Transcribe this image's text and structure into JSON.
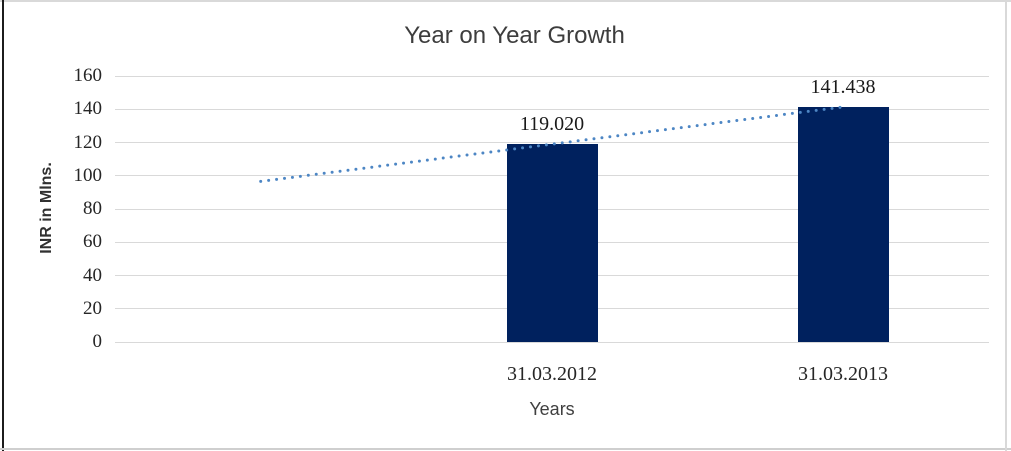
{
  "chart_data": {
    "type": "bar",
    "title": "Year on Year Growth",
    "xlabel": "Years",
    "ylabel": "INR in Mlns.",
    "categories": [
      "",
      "31.03.2012",
      "31.03.2013"
    ],
    "values": [
      null,
      119.02,
      141.438
    ],
    "bar_labels": [
      "",
      "119.020",
      "141.438"
    ],
    "y_ticks": [
      0,
      20,
      40,
      60,
      80,
      100,
      120,
      140,
      160
    ],
    "ylim": [
      0,
      160
    ],
    "grid": true,
    "legend": "none",
    "bar_color": "#00215E",
    "grid_color": "#D9D9D9",
    "trendline": {
      "type": "linear",
      "style": "dotted",
      "color": "#4D86C4",
      "start_slot": 0,
      "end_slot": 2,
      "start_value": 96.602,
      "end_value": 141.438
    }
  }
}
